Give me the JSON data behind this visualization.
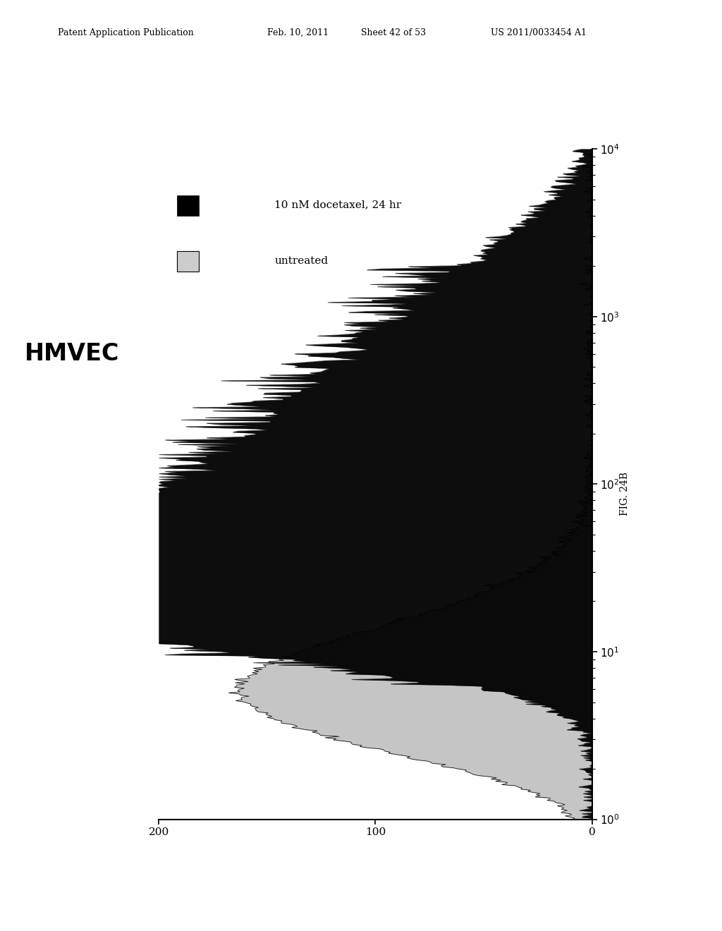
{
  "title": "HMVEC",
  "fig_label": "FIG. 24B",
  "header_text": "Patent Application Publication",
  "header_date": "Feb. 10, 2011",
  "header_sheet": "Sheet 42 of 53",
  "header_patent": "US 2011/0033454 A1",
  "legend_label1": "10 nM docetaxel, 24 hr",
  "legend_label2": "untreated",
  "xlog_min": 0,
  "xlog_max": 4,
  "ymax": 200,
  "background_color": "#ffffff",
  "color_treated": "#000000",
  "color_untreated": "#bbbbbb",
  "seed": 42
}
